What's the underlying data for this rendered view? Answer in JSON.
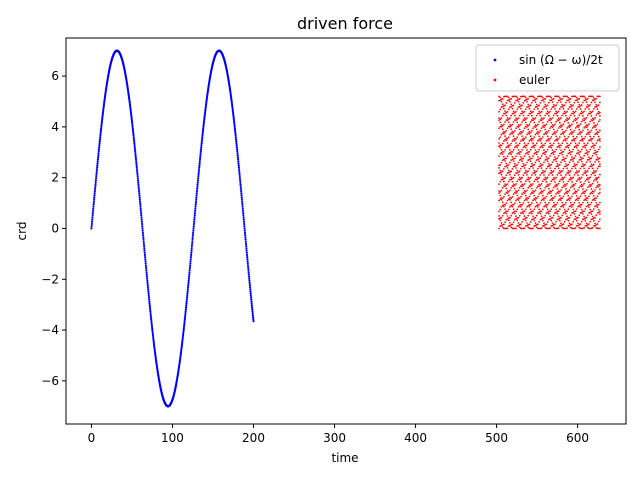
{
  "chart_data": {
    "type": "scatter",
    "title": "driven force",
    "xlabel": "time",
    "ylabel": "crd",
    "xlim": [
      -31.4,
      659.7
    ],
    "ylim": [
      -7.7,
      7.5
    ],
    "xticks": [
      0,
      100,
      200,
      300,
      400,
      500,
      600
    ],
    "xtick_labels": [
      "0",
      "100",
      "200",
      "300",
      "400",
      "500",
      "600"
    ],
    "yticks": [
      -6,
      -4,
      -2,
      0,
      2,
      4,
      6
    ],
    "ytick_labels": [
      "−6",
      "−4",
      "−2",
      "0",
      "2",
      "4",
      "6"
    ],
    "grid": false,
    "legend_position": "top-right",
    "series": [
      {
        "name": "sin(Ω − ω)/2t",
        "color": "#0000ff",
        "marker": "dot",
        "function": {
          "form": "amplitude*sin(2*pi*t/period)",
          "amplitude": 7.0,
          "period": 126.0
        },
        "x_range": [
          0,
          200
        ],
        "step": 0.25
      },
      {
        "name": "euler",
        "color": "#ff0000",
        "marker": "dot",
        "function": {
          "form": "grid of oscillating columns",
          "y_min": 0.0,
          "y_max": 5.2,
          "bands": 21
        },
        "x_range": [
          503,
          628
        ],
        "step": 1.5
      }
    ],
    "legend": [
      {
        "label_text": "sin (Ω − ω)/2t",
        "color": "#0000ff"
      },
      {
        "label_text": "euler",
        "color": "#ff0000"
      }
    ]
  }
}
